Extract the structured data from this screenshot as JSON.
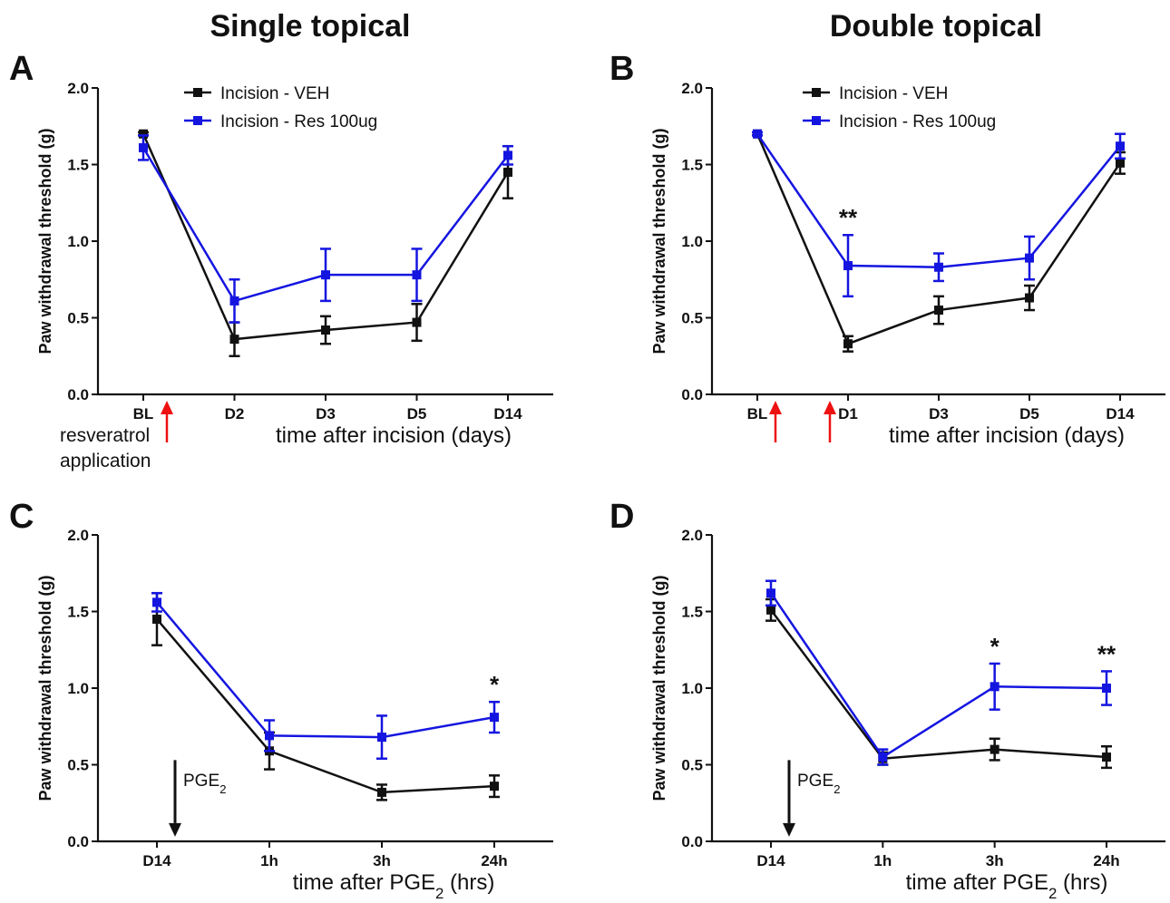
{
  "column_titles": [
    "Single topical",
    "Double topical"
  ],
  "colors": {
    "veh": "#111111",
    "res": "#1515e0",
    "arrow_red": "#ee1111"
  },
  "chart_data": [
    {
      "panel": "A",
      "type": "line",
      "xlabel": "time after incision (days)",
      "ylabel": "Paw withdrawal threshold (g)",
      "ylim": [
        0,
        2.0
      ],
      "yticks": [
        "0.0",
        "0.5",
        "1.0",
        "1.5",
        "2.0"
      ],
      "categories": [
        "BL",
        "D2",
        "D3",
        "D5",
        "D14"
      ],
      "legend": "top-left",
      "series": [
        {
          "name": "Incision - VEH",
          "color": "veh",
          "values": [
            1.7,
            0.36,
            0.42,
            0.47,
            1.45
          ],
          "err": [
            0.01,
            0.11,
            0.09,
            0.12,
            0.17
          ]
        },
        {
          "name": "Incision - Res 100ug",
          "color": "res",
          "values": [
            1.61,
            0.61,
            0.78,
            0.78,
            1.56
          ],
          "err": [
            0.08,
            0.14,
            0.17,
            0.17,
            0.06
          ]
        }
      ],
      "significance": [],
      "annotation": "resveratrol application"
    },
    {
      "panel": "B",
      "type": "line",
      "xlabel": "time after incision (days)",
      "ylabel": "Paw withdrawal threshold (g)",
      "ylim": [
        0,
        2.0
      ],
      "yticks": [
        "0.0",
        "0.5",
        "1.0",
        "1.5",
        "2.0"
      ],
      "categories": [
        "BL",
        "D1",
        "D3",
        "D5",
        "D14"
      ],
      "legend": "top-left",
      "series": [
        {
          "name": "Incision - VEH",
          "color": "veh",
          "values": [
            1.7,
            0.33,
            0.55,
            0.63,
            1.51
          ],
          "err": [
            0.01,
            0.05,
            0.09,
            0.08,
            0.07
          ]
        },
        {
          "name": "Incision - Res 100ug",
          "color": "res",
          "values": [
            1.7,
            0.84,
            0.83,
            0.89,
            1.62
          ],
          "err": [
            0.01,
            0.2,
            0.09,
            0.14,
            0.08
          ]
        }
      ],
      "significance": [
        {
          "category": "D1",
          "label": "**"
        }
      ]
    },
    {
      "panel": "C",
      "type": "line",
      "xlabel": "time after PGE2 (hrs)",
      "ylabel": "Paw withdrawal threshold (g)",
      "ylim": [
        0,
        2.0
      ],
      "yticks": [
        "0.0",
        "0.5",
        "1.0",
        "1.5",
        "2.0"
      ],
      "categories": [
        "D14",
        "1h",
        "3h",
        "24h"
      ],
      "legend": "none",
      "series": [
        {
          "name": "Incision - VEH",
          "color": "veh",
          "values": [
            1.45,
            0.59,
            0.32,
            0.36
          ],
          "err": [
            0.17,
            0.12,
            0.05,
            0.07
          ]
        },
        {
          "name": "Incision - Res 100ug",
          "color": "res",
          "values": [
            1.56,
            0.69,
            0.68,
            0.81
          ],
          "err": [
            0.06,
            0.1,
            0.14,
            0.1
          ]
        }
      ],
      "significance": [
        {
          "category": "24h",
          "label": "*"
        }
      ],
      "annotation": "PGE2"
    },
    {
      "panel": "D",
      "type": "line",
      "xlabel": "time after PGE2 (hrs)",
      "ylabel": "Paw withdrawal threshold (g)",
      "ylim": [
        0,
        2.0
      ],
      "yticks": [
        "0.0",
        "0.5",
        "1.0",
        "1.5",
        "2.0"
      ],
      "categories": [
        "D14",
        "1h",
        "3h",
        "24h"
      ],
      "legend": "none",
      "series": [
        {
          "name": "Incision - VEH",
          "color": "veh",
          "values": [
            1.51,
            0.54,
            0.6,
            0.55
          ],
          "err": [
            0.07,
            0.04,
            0.07,
            0.07
          ]
        },
        {
          "name": "Incision - Res 100ug",
          "color": "res",
          "values": [
            1.62,
            0.55,
            1.01,
            1.0
          ],
          "err": [
            0.08,
            0.05,
            0.15,
            0.11
          ]
        }
      ],
      "significance": [
        {
          "category": "3h",
          "label": "*"
        },
        {
          "category": "24h",
          "label": "**"
        }
      ],
      "annotation": "PGE2"
    }
  ]
}
